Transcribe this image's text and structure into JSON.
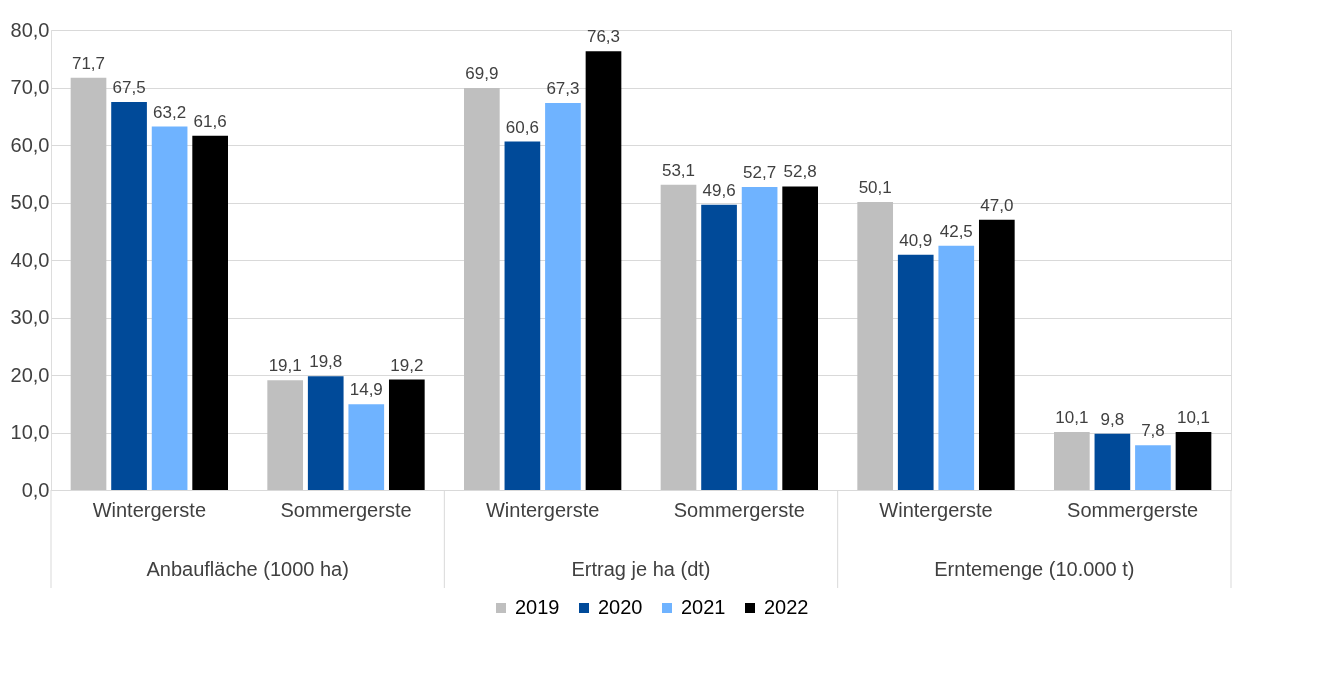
{
  "chart_data": {
    "type": "bar",
    "categories": [
      "Wintergerste",
      "Sommergerste",
      "Wintergerste",
      "Sommergerste",
      "Wintergerste",
      "Sommergerste"
    ],
    "annotations": [
      "Anbaufläche (1000 ha)",
      "Ertrag je ha (dt)",
      "Erntemenge (10.000 t)"
    ],
    "series": [
      {
        "name": "2019",
        "color": "#bfbfbf",
        "values": [
          71.7,
          19.1,
          69.9,
          53.1,
          50.1,
          10.1
        ],
        "value_labels": [
          "71,7",
          "19,1",
          "69,9",
          "53,1",
          "50,1",
          "10,1"
        ]
      },
      {
        "name": "2020",
        "color": "#004a99",
        "values": [
          67.5,
          19.8,
          60.6,
          49.6,
          40.9,
          9.8
        ],
        "value_labels": [
          "67,5",
          "19,8",
          "60,6",
          "49,6",
          "40,9",
          "9,8"
        ]
      },
      {
        "name": "2021",
        "color": "#6fb3ff",
        "values": [
          63.2,
          14.9,
          67.3,
          52.7,
          42.5,
          7.8
        ],
        "value_labels": [
          "63,2",
          "14,9",
          "67,3",
          "52,7",
          "42,5",
          "7,8"
        ]
      },
      {
        "name": "2022",
        "color": "#000000",
        "values": [
          61.6,
          19.2,
          76.3,
          52.8,
          47.0,
          10.1
        ],
        "value_labels": [
          "61,6",
          "19,2",
          "76,3",
          "52,8",
          "47,0",
          "10,1"
        ]
      }
    ],
    "ylim": [
      0,
      80
    ],
    "yticks": [
      {
        "value": 0,
        "label": "0,0"
      },
      {
        "value": 10,
        "label": "10,0"
      },
      {
        "value": 20,
        "label": "20,0"
      },
      {
        "value": 30,
        "label": "30,0"
      },
      {
        "value": 40,
        "label": "40,0"
      },
      {
        "value": 50,
        "label": "50,0"
      },
      {
        "value": 60,
        "label": "60,0"
      },
      {
        "value": 70,
        "label": "70,0"
      },
      {
        "value": 80,
        "label": "80,0"
      }
    ],
    "grid": "y",
    "legend": "bottom"
  }
}
